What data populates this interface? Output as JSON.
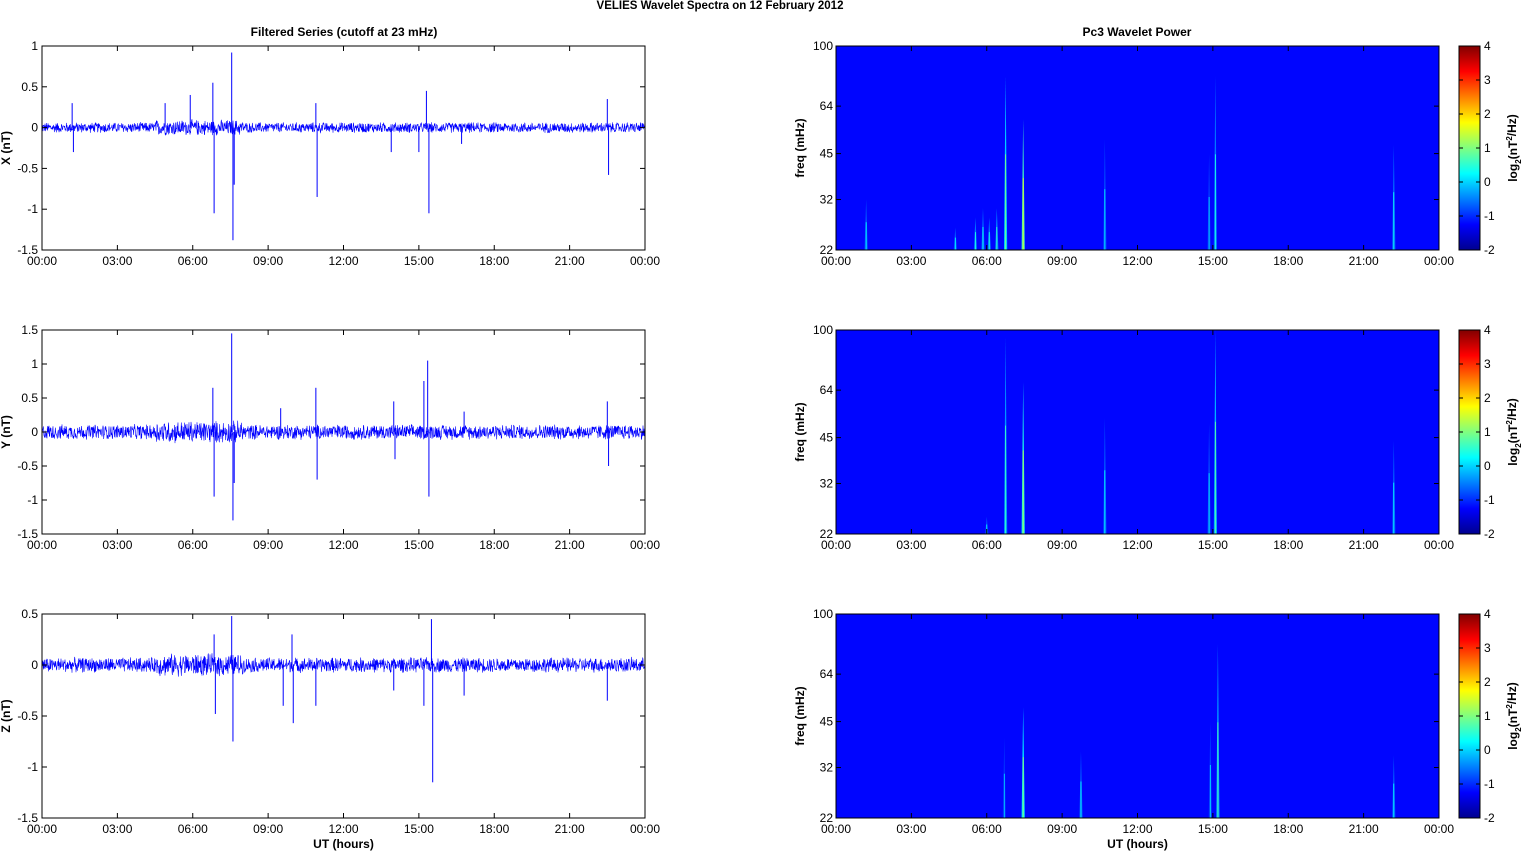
{
  "figure": {
    "title": "VELIES Wavelet Spectra on 12 February  2012",
    "left_title": "Filtered Series (cutoff at 23 mHz)",
    "right_title": "Pc3 Wavelet Power",
    "xlabel": "UT (hours)"
  },
  "chart_data": [
    {
      "type": "line",
      "title": "Filtered Series (cutoff at 23 mHz)",
      "ylabel": "X (nT)",
      "xlabel": "",
      "xticks": [
        "00:00",
        "03:00",
        "06:00",
        "09:00",
        "12:00",
        "15:00",
        "18:00",
        "21:00",
        "00:00"
      ],
      "xlim_hours": [
        0,
        24
      ],
      "ylim": [
        -1.5,
        1
      ],
      "yticks": [
        -1.5,
        -1,
        -0.5,
        0,
        0.5,
        1
      ],
      "yticklabels": [
        "-1.5",
        "-1",
        "-0.5",
        "0",
        "0.5",
        "1"
      ],
      "color": "#0000ff",
      "noise_amplitude_nT": 0.07,
      "spikes": [
        {
          "hour": 1.2,
          "value": 0.3
        },
        {
          "hour": 1.25,
          "value": -0.3
        },
        {
          "hour": 4.9,
          "value": 0.3
        },
        {
          "hour": 5.9,
          "value": 0.4
        },
        {
          "hour": 6.8,
          "value": 0.55
        },
        {
          "hour": 6.85,
          "value": -1.05
        },
        {
          "hour": 7.55,
          "value": 0.92
        },
        {
          "hour": 7.6,
          "value": -1.38
        },
        {
          "hour": 7.65,
          "value": -0.7
        },
        {
          "hour": 10.9,
          "value": 0.3
        },
        {
          "hour": 10.95,
          "value": -0.85
        },
        {
          "hour": 13.9,
          "value": -0.3
        },
        {
          "hour": 15.0,
          "value": -0.3
        },
        {
          "hour": 15.3,
          "value": 0.45
        },
        {
          "hour": 15.4,
          "value": -1.05
        },
        {
          "hour": 16.7,
          "value": -0.2
        },
        {
          "hour": 22.5,
          "value": 0.35
        },
        {
          "hour": 22.55,
          "value": -0.58
        }
      ]
    },
    {
      "type": "line",
      "ylabel": "Y (nT)",
      "xlabel": "",
      "xticks": [
        "00:00",
        "03:00",
        "06:00",
        "09:00",
        "12:00",
        "15:00",
        "18:00",
        "21:00",
        "00:00"
      ],
      "xlim_hours": [
        0,
        24
      ],
      "ylim": [
        -1.5,
        1.5
      ],
      "yticks": [
        -1.5,
        -1,
        -0.5,
        0,
        0.5,
        1,
        1.5
      ],
      "yticklabels": [
        "-1.5",
        "-1",
        "-0.5",
        "0",
        "0.5",
        "1",
        "1.5"
      ],
      "color": "#0000ff",
      "noise_amplitude_nT": 0.12,
      "spikes": [
        {
          "hour": 6.8,
          "value": 0.65
        },
        {
          "hour": 6.85,
          "value": -0.95
        },
        {
          "hour": 7.55,
          "value": 1.45
        },
        {
          "hour": 7.6,
          "value": -1.3
        },
        {
          "hour": 7.65,
          "value": -0.75
        },
        {
          "hour": 9.5,
          "value": 0.35
        },
        {
          "hour": 10.9,
          "value": 0.65
        },
        {
          "hour": 10.95,
          "value": -0.7
        },
        {
          "hour": 14.0,
          "value": 0.45
        },
        {
          "hour": 14.05,
          "value": -0.4
        },
        {
          "hour": 15.2,
          "value": 0.75
        },
        {
          "hour": 15.35,
          "value": 1.05
        },
        {
          "hour": 15.4,
          "value": -0.95
        },
        {
          "hour": 16.8,
          "value": 0.3
        },
        {
          "hour": 22.5,
          "value": 0.45
        },
        {
          "hour": 22.55,
          "value": -0.5
        }
      ]
    },
    {
      "type": "line",
      "ylabel": "Z (nT)",
      "xlabel": "UT (hours)",
      "xticks": [
        "00:00",
        "03:00",
        "06:00",
        "09:00",
        "12:00",
        "15:00",
        "18:00",
        "21:00",
        "00:00"
      ],
      "xlim_hours": [
        0,
        24
      ],
      "ylim": [
        -1.5,
        0.5
      ],
      "yticks": [
        -1.5,
        -1,
        -0.5,
        0,
        0.5
      ],
      "yticklabels": [
        "-1.5",
        "-1",
        "-0.5",
        "0",
        "0.5"
      ],
      "color": "#0000ff",
      "noise_amplitude_nT": 0.08,
      "spikes": [
        {
          "hour": 6.85,
          "value": 0.3
        },
        {
          "hour": 6.9,
          "value": -0.48
        },
        {
          "hour": 7.55,
          "value": 0.48
        },
        {
          "hour": 7.6,
          "value": -0.75
        },
        {
          "hour": 9.6,
          "value": -0.4
        },
        {
          "hour": 9.95,
          "value": 0.3
        },
        {
          "hour": 10.0,
          "value": -0.57
        },
        {
          "hour": 10.9,
          "value": -0.4
        },
        {
          "hour": 14.0,
          "value": -0.25
        },
        {
          "hour": 15.2,
          "value": -0.4
        },
        {
          "hour": 15.5,
          "value": 0.45
        },
        {
          "hour": 15.55,
          "value": -1.15
        },
        {
          "hour": 16.8,
          "value": -0.3
        },
        {
          "hour": 22.5,
          "value": -0.35
        }
      ]
    },
    {
      "type": "heatmap",
      "title": "Pc3 Wavelet Power",
      "ylabel": "freq (mHz)",
      "xlabel": "",
      "xticks": [
        "00:00",
        "03:00",
        "06:00",
        "09:00",
        "12:00",
        "15:00",
        "18:00",
        "21:00",
        "00:00"
      ],
      "xlim_hours": [
        0,
        24
      ],
      "ylim_mHz": [
        22,
        100
      ],
      "yscale": "log",
      "yticks": [
        22,
        32,
        45,
        64,
        100
      ],
      "colorbar_label": "log2(nT^2/Hz)",
      "clim": [
        -2,
        4
      ],
      "cticks": [
        -2,
        -1,
        0,
        1,
        2,
        3,
        4
      ],
      "colormap": "jet",
      "bursts": [
        {
          "hour": 1.2,
          "fmax": 32,
          "level": -1.2
        },
        {
          "hour": 4.75,
          "fmax": 26,
          "level": -1.2
        },
        {
          "hour": 5.55,
          "fmax": 28,
          "level": -1.0
        },
        {
          "hour": 5.85,
          "fmax": 30,
          "level": -1.1
        },
        {
          "hour": 6.1,
          "fmax": 28,
          "level": -1.0
        },
        {
          "hour": 6.4,
          "fmax": 30,
          "level": -0.9
        },
        {
          "hour": 6.75,
          "fmax": 80,
          "level": -0.4
        },
        {
          "hour": 7.45,
          "fmax": 58,
          "level": 0.3
        },
        {
          "hour": 10.7,
          "fmax": 50,
          "level": -1.3
        },
        {
          "hour": 14.85,
          "fmax": 45,
          "level": -1.4
        },
        {
          "hour": 15.1,
          "fmax": 80,
          "level": -1.0
        },
        {
          "hour": 22.2,
          "fmax": 48,
          "level": -1.1
        }
      ]
    },
    {
      "type": "heatmap",
      "ylabel": "freq (mHz)",
      "xlabel": "",
      "xticks": [
        "00:00",
        "03:00",
        "06:00",
        "09:00",
        "12:00",
        "15:00",
        "18:00",
        "21:00",
        "00:00"
      ],
      "xlim_hours": [
        0,
        24
      ],
      "ylim_mHz": [
        22,
        100
      ],
      "yscale": "log",
      "yticks": [
        22,
        32,
        45,
        64,
        100
      ],
      "colorbar_label": "log2(nT^2/Hz)",
      "clim": [
        -2,
        4
      ],
      "cticks": [
        -2,
        -1,
        0,
        1,
        2,
        3,
        4
      ],
      "colormap": "jet",
      "bursts": [
        {
          "hour": 6.0,
          "fmax": 25,
          "level": -1.3
        },
        {
          "hour": 6.75,
          "fmax": 95,
          "level": -0.8
        },
        {
          "hour": 7.45,
          "fmax": 68,
          "level": 0.0
        },
        {
          "hour": 10.7,
          "fmax": 52,
          "level": -1.2
        },
        {
          "hour": 14.85,
          "fmax": 50,
          "level": -1.3
        },
        {
          "hour": 15.1,
          "fmax": 100,
          "level": -0.6
        },
        {
          "hour": 22.2,
          "fmax": 44,
          "level": -1.2
        }
      ]
    },
    {
      "type": "heatmap",
      "ylabel": "freq (mHz)",
      "xlabel": "UT (hours)",
      "xticks": [
        "00:00",
        "03:00",
        "06:00",
        "09:00",
        "12:00",
        "15:00",
        "18:00",
        "21:00",
        "00:00"
      ],
      "xlim_hours": [
        0,
        24
      ],
      "ylim_mHz": [
        22,
        100
      ],
      "yscale": "log",
      "yticks": [
        22,
        32,
        45,
        64,
        100
      ],
      "colorbar_label": "log2(nT^2/Hz)",
      "clim": [
        -2,
        4
      ],
      "cticks": [
        -2,
        -1,
        0,
        1,
        2,
        3,
        4
      ],
      "colormap": "jet",
      "bursts": [
        {
          "hour": 6.7,
          "fmax": 40,
          "level": -1.5
        },
        {
          "hour": 7.45,
          "fmax": 50,
          "level": -0.2
        },
        {
          "hour": 9.75,
          "fmax": 36,
          "level": -1.2
        },
        {
          "hour": 14.9,
          "fmax": 45,
          "level": -1.4
        },
        {
          "hour": 15.2,
          "fmax": 80,
          "level": -0.7
        },
        {
          "hour": 22.2,
          "fmax": 35,
          "level": -1.2
        }
      ]
    }
  ]
}
